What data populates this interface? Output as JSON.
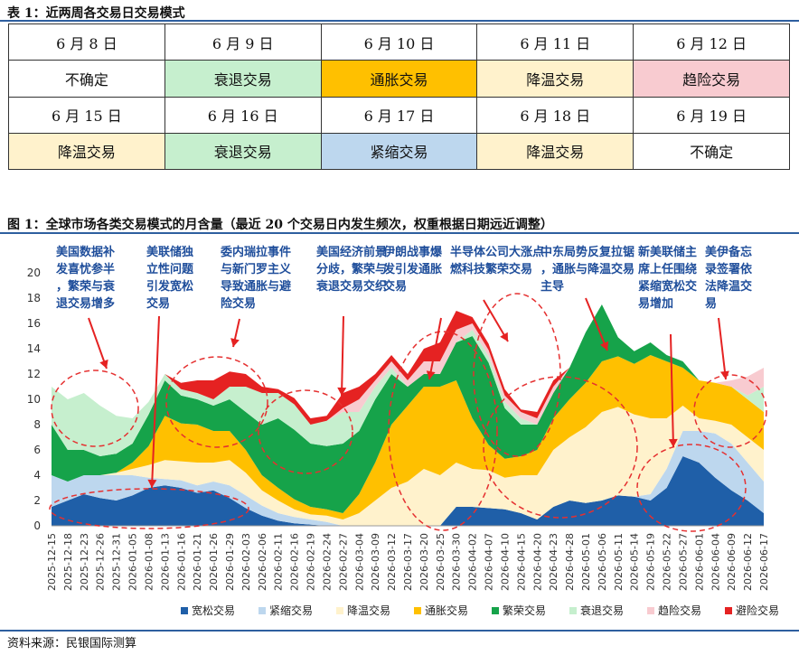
{
  "table": {
    "caption": "表 1：近两周各交易日交易模式",
    "rows": [
      [
        {
          "text": "6 月 8 日",
          "color": ""
        },
        {
          "text": "6 月 9 日",
          "color": ""
        },
        {
          "text": "6 月 10 日",
          "color": ""
        },
        {
          "text": "6 月 11 日",
          "color": ""
        },
        {
          "text": "6 月 12 日",
          "color": ""
        }
      ],
      [
        {
          "text": "不确定",
          "color": "#ffffff"
        },
        {
          "text": "衰退交易",
          "color": "#c6efce"
        },
        {
          "text": "通胀交易",
          "color": "#ffc000"
        },
        {
          "text": "降温交易",
          "color": "#fff2cc"
        },
        {
          "text": "趋险交易",
          "color": "#f8cbd0"
        }
      ],
      [
        {
          "text": "6 月 15 日",
          "color": ""
        },
        {
          "text": "6 月 16 日",
          "color": ""
        },
        {
          "text": "6 月 17 日",
          "color": ""
        },
        {
          "text": "6 月 18 日",
          "color": ""
        },
        {
          "text": "6 月 19 日",
          "color": ""
        }
      ],
      [
        {
          "text": "降温交易",
          "color": "#fff2cc"
        },
        {
          "text": "衰退交易",
          "color": "#c6efce"
        },
        {
          "text": "紧缩交易",
          "color": "#bdd7ee"
        },
        {
          "text": "降温交易",
          "color": "#fff2cc"
        },
        {
          "text": "不确定",
          "color": "#ffffff"
        }
      ]
    ]
  },
  "figure_caption": "图 1：全球市场各类交易模式的月含量（最近 20 个交易日内发生频次，权重根据日期远近调整）",
  "source": "资料来源：民银国际测算",
  "annotations": [
    "美国数据补发喜忧参半，繁荣与衰退交易增多",
    "美联储独立性问题引发宽松交易",
    "委内瑞拉事件与新门罗主义导致通胀与避险交易",
    "美国经济前景分歧，繁荣与衰退交易交织",
    "伊朗战事爆发引发通胀交易",
    "半导体公司大涨点燃科技繁荣交易",
    "中东局势反复拉锯，通胀与降温交易主导",
    "新美联储主席上任围绕紧缩宽松交易增加",
    "美伊备忘录签署依法降温交易"
  ],
  "chart_data": {
    "type": "area",
    "stacked": true,
    "ylim": [
      0,
      20
    ],
    "yticks": [
      0,
      2,
      4,
      6,
      8,
      10,
      12,
      14,
      16,
      18,
      20
    ],
    "x_tick_labels": [
      "2025-12-15",
      "2025-12-18",
      "2025-12-23",
      "2025-12-26",
      "2025-12-31",
      "2026-01-05",
      "2026-01-08",
      "2026-01-13",
      "2026-01-16",
      "2026-01-21",
      "2026-01-26",
      "2026-01-29",
      "2026-02-03",
      "2026-02-06",
      "2026-02-11",
      "2026-02-16",
      "2026-02-19",
      "2026-02-24",
      "2026-02-27",
      "2026-03-04",
      "2026-03-09",
      "2026-03-12",
      "2026-03-17",
      "2026-03-20",
      "2026-03-25",
      "2026-03-30",
      "2026-04-02",
      "2026-04-07",
      "2026-04-10",
      "2026-04-15",
      "2026-04-20",
      "2026-04-23",
      "2026-04-28",
      "2026-05-01",
      "2026-05-06",
      "2026-05-11",
      "2026-05-14",
      "2026-05-19",
      "2026-05-22",
      "2026-05-27",
      "2026-06-01",
      "2026-06-04",
      "2026-06-09",
      "2026-06-12",
      "2026-06-17"
    ],
    "legend_position": "bottom",
    "series": [
      {
        "name": "宽松交易",
        "color": "#1f5fa8",
        "values": [
          1.5,
          2.0,
          2.5,
          2.2,
          2.0,
          2.4,
          3.0,
          3.2,
          3.0,
          2.6,
          2.8,
          2.2,
          1.4,
          0.8,
          0.4,
          0.2,
          0.1,
          0,
          0,
          0,
          0,
          0,
          0,
          0,
          0,
          1.5,
          1.5,
          1.4,
          1.3,
          1.0,
          0.5,
          1.5,
          2.0,
          1.8,
          2.0,
          2.4,
          2.3,
          2.0,
          3.0,
          5.5,
          5.0,
          3.8,
          2.8,
          2.0,
          1.0
        ]
      },
      {
        "name": "紧缩交易",
        "color": "#bdd7ee",
        "values": [
          2.5,
          1.5,
          1.5,
          1.8,
          2.0,
          1.6,
          0.8,
          0.5,
          0.6,
          0.6,
          0.7,
          1.0,
          1.0,
          0.8,
          0.6,
          0.5,
          0.4,
          0.3,
          0,
          0,
          0,
          0,
          0,
          0,
          0,
          0,
          0,
          0,
          0,
          0,
          0,
          0,
          0,
          0,
          0,
          0,
          0,
          0.5,
          1.5,
          2.0,
          2.5,
          3.5,
          3.7,
          3.0,
          2.5
        ]
      },
      {
        "name": "降温交易",
        "color": "#fff2cc",
        "values": [
          0,
          0,
          0,
          0,
          0.2,
          0.5,
          1.0,
          1.5,
          1.5,
          1.8,
          1.5,
          2.0,
          1.8,
          1.2,
          1.0,
          0.6,
          0.4,
          0.5,
          0.5,
          1.0,
          2.0,
          3.0,
          3.5,
          4.5,
          4.0,
          3.5,
          3.0,
          3.0,
          2.5,
          3.0,
          3.5,
          4.5,
          5.0,
          6.0,
          7.0,
          7.0,
          6.5,
          6.0,
          4.0,
          2.0,
          1.0,
          1.0,
          1.5,
          2.0,
          2.5
        ]
      },
      {
        "name": "通胀交易",
        "color": "#ffc000",
        "values": [
          0,
          0,
          0,
          0,
          0,
          0.5,
          1.5,
          3.5,
          3.0,
          3.0,
          2.5,
          2.3,
          1.8,
          1.2,
          1.0,
          0.8,
          0.6,
          0.5,
          0.5,
          1.5,
          3.0,
          5.0,
          6.0,
          6.5,
          7.0,
          6.5,
          4.0,
          2.0,
          1.5,
          1.5,
          2.0,
          2.5,
          3.0,
          3.5,
          4.0,
          4.0,
          4.0,
          5.0,
          4.5,
          3.0,
          3.0,
          3.0,
          3.0,
          3.0,
          3.0
        ]
      },
      {
        "name": "繁荣交易",
        "color": "#16a34a",
        "values": [
          4.0,
          2.5,
          2.0,
          1.5,
          1.5,
          1.5,
          2.5,
          2.8,
          2.2,
          2.0,
          2.0,
          2.5,
          3.0,
          4.0,
          5.5,
          5.5,
          5.0,
          5.0,
          5.5,
          5.0,
          5.0,
          4.0,
          1.5,
          1.0,
          1.0,
          3.0,
          6.5,
          6.5,
          4.0,
          2.5,
          2.0,
          2.0,
          2.5,
          4.0,
          4.5,
          1.5,
          1.0,
          1.0,
          0.5,
          0.5,
          0,
          0,
          0,
          0,
          0
        ]
      },
      {
        "name": "衰退交易",
        "color": "#c6efce",
        "values": [
          3.0,
          4.0,
          4.5,
          4.0,
          3.0,
          2.0,
          1.0,
          0.5,
          0.5,
          0.5,
          0.5,
          1.0,
          2.0,
          2.5,
          2.0,
          2.0,
          1.5,
          2.0,
          2.5,
          1.5,
          1.0,
          0.5,
          0,
          0,
          0,
          0,
          0.5,
          0.5,
          0.5,
          0.5,
          0,
          0,
          0,
          0,
          0,
          0,
          0,
          0,
          0,
          0,
          0,
          0,
          0,
          0.3,
          2.0
        ]
      },
      {
        "name": "趋险交易",
        "color": "#f8cbd0",
        "values": [
          0,
          0,
          0,
          0,
          0,
          0,
          0,
          0,
          0,
          0,
          0,
          0,
          0,
          0,
          0,
          0,
          0,
          0,
          0.3,
          1.0,
          0.5,
          0.5,
          0.5,
          1.0,
          1.0,
          1.0,
          0.5,
          0.5,
          0.5,
          0.5,
          0.5,
          0.5,
          0,
          0,
          0,
          0,
          0,
          0,
          0,
          0,
          0,
          0,
          0.5,
          1.5,
          1.5
        ]
      },
      {
        "name": "避险交易",
        "color": "#e52222",
        "values": [
          0,
          0,
          0,
          0,
          0,
          0,
          0,
          0,
          0.5,
          1.0,
          1.5,
          1.2,
          1.0,
          0.5,
          0.3,
          0.5,
          0.5,
          0.4,
          1.2,
          1.0,
          0.5,
          0.5,
          0.5,
          1.0,
          1.5,
          1.5,
          0.5,
          0.5,
          0.5,
          0.2,
          0.5,
          0.5,
          0,
          0,
          0,
          0,
          0,
          0,
          0,
          0,
          0,
          0,
          0,
          0,
          0
        ]
      }
    ]
  }
}
